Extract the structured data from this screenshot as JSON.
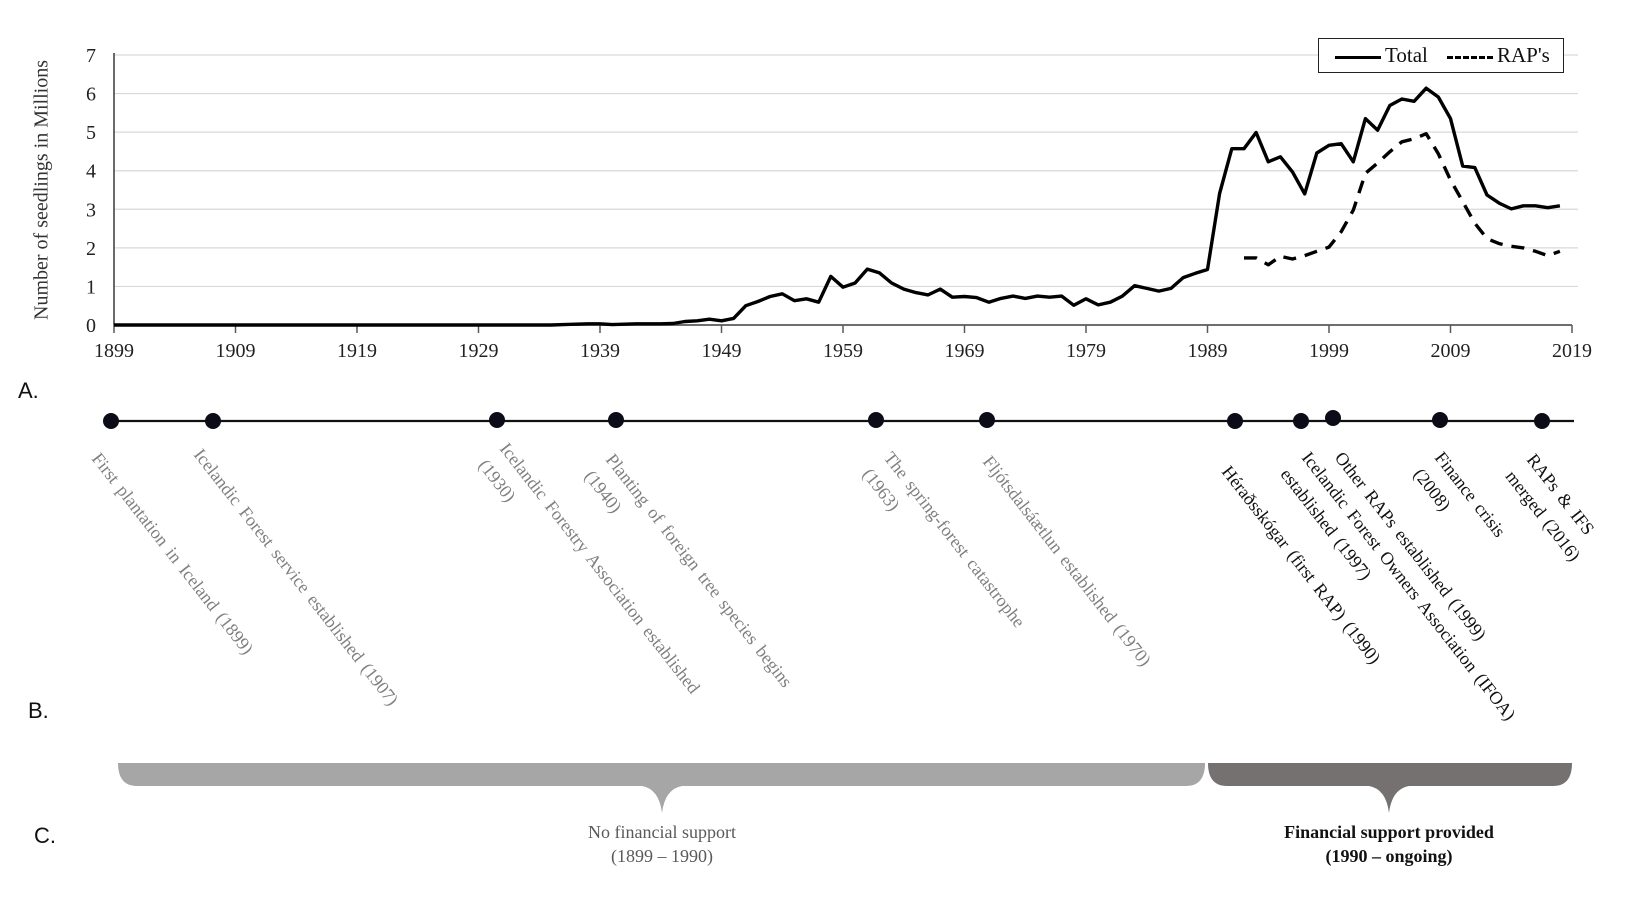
{
  "section_labels": {
    "a": "A.",
    "b": "B.",
    "c": "C."
  },
  "chart_data": {
    "type": "line",
    "title": "",
    "xlabel": "",
    "ylabel": "Number of seedlings in Millions",
    "xlim": [
      1899,
      2019
    ],
    "ylim": [
      0,
      7
    ],
    "grid": true,
    "legend_position": "top-right",
    "x_ticks": [
      "1899",
      "1909",
      "1919",
      "1929",
      "1939",
      "1949",
      "1959",
      "1969",
      "1979",
      "1989",
      "1999",
      "2009",
      "2019"
    ],
    "y_ticks": [
      "0",
      "1",
      "2",
      "3",
      "4",
      "5",
      "6",
      "7"
    ],
    "series": [
      {
        "name": "Total",
        "style": "solid",
        "color": "#000000",
        "x": [
          1899,
          1900,
          1901,
          1902,
          1903,
          1904,
          1905,
          1906,
          1907,
          1908,
          1909,
          1910,
          1911,
          1912,
          1913,
          1914,
          1915,
          1916,
          1917,
          1918,
          1919,
          1920,
          1921,
          1922,
          1923,
          1924,
          1925,
          1926,
          1927,
          1928,
          1929,
          1930,
          1931,
          1932,
          1933,
          1934,
          1935,
          1936,
          1937,
          1938,
          1939,
          1940,
          1941,
          1942,
          1943,
          1944,
          1945,
          1946,
          1947,
          1948,
          1949,
          1950,
          1951,
          1952,
          1953,
          1954,
          1955,
          1956,
          1957,
          1958,
          1959,
          1960,
          1961,
          1962,
          1963,
          1964,
          1965,
          1966,
          1967,
          1968,
          1969,
          1970,
          1971,
          1972,
          1973,
          1974,
          1975,
          1976,
          1977,
          1978,
          1979,
          1980,
          1981,
          1982,
          1983,
          1984,
          1985,
          1986,
          1987,
          1988,
          1989,
          1990,
          1991,
          1992,
          1993,
          1994,
          1995,
          1996,
          1997,
          1998,
          1999,
          2000,
          2001,
          2002,
          2003,
          2004,
          2005,
          2006,
          2007,
          2008,
          2009,
          2010,
          2011,
          2012,
          2013,
          2014,
          2015,
          2016,
          2017,
          2018
        ],
        "y": [
          0,
          0,
          0,
          0,
          0,
          0,
          0,
          0,
          0,
          0,
          0,
          0,
          0,
          0,
          0,
          0,
          0,
          0,
          0,
          0,
          0,
          0,
          0,
          0,
          0,
          0,
          0,
          0,
          0,
          0,
          0,
          0,
          0,
          0,
          0,
          0,
          0,
          0.01,
          0.02,
          0.03,
          0.03,
          0.01,
          0.02,
          0.03,
          0.03,
          0.03,
          0.04,
          0.09,
          0.11,
          0.15,
          0.11,
          0.17,
          0.5,
          0.61,
          0.74,
          0.81,
          0.63,
          0.68,
          0.59,
          1.26,
          0.98,
          1.09,
          1.45,
          1.35,
          1.09,
          0.93,
          0.84,
          0.78,
          0.93,
          0.72,
          0.74,
          0.71,
          0.59,
          0.69,
          0.75,
          0.69,
          0.75,
          0.72,
          0.75,
          0.51,
          0.68,
          0.52,
          0.59,
          0.75,
          1.02,
          0.95,
          0.88,
          0.95,
          1.23,
          1.34,
          1.44,
          3.41,
          4.57,
          4.57,
          4.99,
          4.23,
          4.36,
          3.97,
          3.4,
          4.46,
          4.66,
          4.7,
          4.23,
          5.35,
          5.05,
          5.69,
          5.86,
          5.8,
          6.14,
          5.91,
          5.35,
          4.12,
          4.08,
          3.37,
          3.16,
          3.01,
          3.09,
          3.09,
          3.04,
          3.09
        ]
      },
      {
        "name": "RAP's",
        "style": "dashed",
        "color": "#000000",
        "x": [
          1992,
          1993,
          1994,
          1995,
          1996,
          1997,
          1998,
          1999,
          2000,
          2001,
          2002,
          2003,
          2004,
          2005,
          2006,
          2007,
          2008,
          2009,
          2010,
          2011,
          2012,
          2013,
          2014,
          2015,
          2016,
          2017,
          2018
        ],
        "y": [
          1.74,
          1.74,
          1.56,
          1.78,
          1.71,
          1.8,
          1.91,
          2.02,
          2.42,
          2.98,
          3.93,
          4.2,
          4.49,
          4.75,
          4.83,
          4.96,
          4.44,
          3.76,
          3.2,
          2.64,
          2.24,
          2.11,
          2.04,
          2.0,
          1.91,
          1.8,
          1.91
        ]
      }
    ]
  },
  "timeline": {
    "events": [
      {
        "year": 1899,
        "lines": [
          "First plantation  in Iceland  (1899)"
        ],
        "tone": "gray"
      },
      {
        "year": 1907,
        "lines": [
          "Icelandic  Forest service  established  (1907)"
        ],
        "tone": "gray"
      },
      {
        "year": 1930,
        "lines": [
          "Icelandic  Forestry Association  established",
          "(1930)"
        ],
        "tone": "gray"
      },
      {
        "year": 1940,
        "lines": [
          "Planting  of  foreign  tree  species  begins",
          "(1940)"
        ],
        "tone": "gray"
      },
      {
        "year": 1963,
        "lines": [
          "The  spring-forest  catastrophe",
          "(1963)"
        ],
        "tone": "gray"
      },
      {
        "year": 1970,
        "lines": [
          "Fljótsdalsáætlun   established  (1970)"
        ],
        "tone": "gray"
      },
      {
        "year": 1990,
        "lines": [
          "Héraðsskógar  (first  RAP) (1990)"
        ],
        "tone": "dark"
      },
      {
        "year": 1997,
        "lines": [
          "Icelandic  Forest Owners Association  (IFOA)",
          "established  (1997)"
        ],
        "tone": "dark"
      },
      {
        "year": 1999,
        "lines": [
          "Other RAPs   established  (1999)"
        ],
        "tone": "dark"
      },
      {
        "year": 2008,
        "lines": [
          "Finance    crisis",
          "(2008)"
        ],
        "tone": "dark"
      },
      {
        "year": 2016,
        "lines": [
          "RAPs & IFS",
          "merged (2016)"
        ],
        "tone": "dark"
      }
    ]
  },
  "periods": [
    {
      "label": "No financial  support",
      "range": "(1899 – 1990)",
      "color": "#a6a6a6"
    },
    {
      "label": "Financial  support  provided",
      "range": "(1990 – ongoing)",
      "color": "#767171"
    }
  ]
}
